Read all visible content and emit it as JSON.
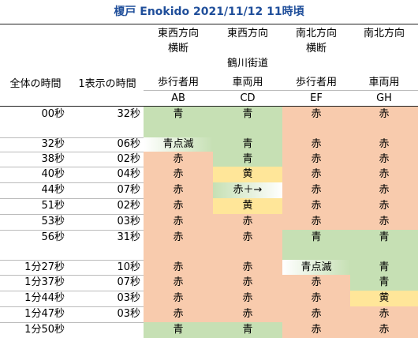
{
  "title": "榎戸 Enokido 2021/11/12 11時頃",
  "header": {
    "col_ab_line1": "東西方向",
    "col_ab_line2": "横断",
    "col_cd_line1": "東西方向",
    "col_cd_line3": "鶴川街道",
    "col_ef_line1": "南北方向",
    "col_ef_line2": "横断",
    "col_gh_line1": "南北方向",
    "total_time": "全体の時間",
    "display_time": "1表示の時間",
    "ab_type": "歩行者用",
    "cd_type": "車両用",
    "ef_type": "歩行者用",
    "gh_type": "車両用",
    "ab_code": "AB",
    "cd_code": "CD",
    "ef_code": "EF",
    "gh_code": "GH"
  },
  "rows": [
    {
      "time": "00秒",
      "dur": "32秒",
      "ab": "青",
      "cd": "青",
      "ef": "赤",
      "gh": "赤"
    },
    {
      "time": "32秒",
      "dur": "06秒",
      "ab": "青点滅",
      "cd": "青",
      "ef": "赤",
      "gh": "赤"
    },
    {
      "time": "38秒",
      "dur": "02秒",
      "ab": "赤",
      "cd": "青",
      "ef": "赤",
      "gh": "赤"
    },
    {
      "time": "40秒",
      "dur": "04秒",
      "ab": "赤",
      "cd": "黄",
      "ef": "赤",
      "gh": "赤"
    },
    {
      "time": "44秒",
      "dur": "07秒",
      "ab": "赤",
      "cd": "赤＋→",
      "ef": "赤",
      "gh": "赤"
    },
    {
      "time": "51秒",
      "dur": "02秒",
      "ab": "赤",
      "cd": "黄",
      "ef": "赤",
      "gh": "赤"
    },
    {
      "time": "53秒",
      "dur": "03秒",
      "ab": "赤",
      "cd": "赤",
      "ef": "赤",
      "gh": "赤"
    },
    {
      "time": "56秒",
      "dur": "31秒",
      "ab": "赤",
      "cd": "赤",
      "ef": "青",
      "gh": "青"
    },
    {
      "time": "1分27秒",
      "dur": "10秒",
      "ab": "赤",
      "cd": "赤",
      "ef": "青点滅",
      "gh": "青"
    },
    {
      "time": "1分37秒",
      "dur": "07秒",
      "ab": "赤",
      "cd": "赤",
      "ef": "赤",
      "gh": "青"
    },
    {
      "time": "1分44秒",
      "dur": "03秒",
      "ab": "赤",
      "cd": "赤",
      "ef": "赤",
      "gh": "黄"
    },
    {
      "time": "1分47秒",
      "dur": "03秒",
      "ab": "赤",
      "cd": "赤",
      "ef": "赤",
      "gh": "赤"
    },
    {
      "time": "1分50秒",
      "dur": "",
      "ab": "青",
      "cd": "青",
      "ef": "赤",
      "gh": "赤"
    }
  ],
  "colors": {
    "title": "#1f4e9a",
    "green": "#c6e0b4",
    "red": "#f8cbad",
    "yellow": "#ffe699"
  }
}
